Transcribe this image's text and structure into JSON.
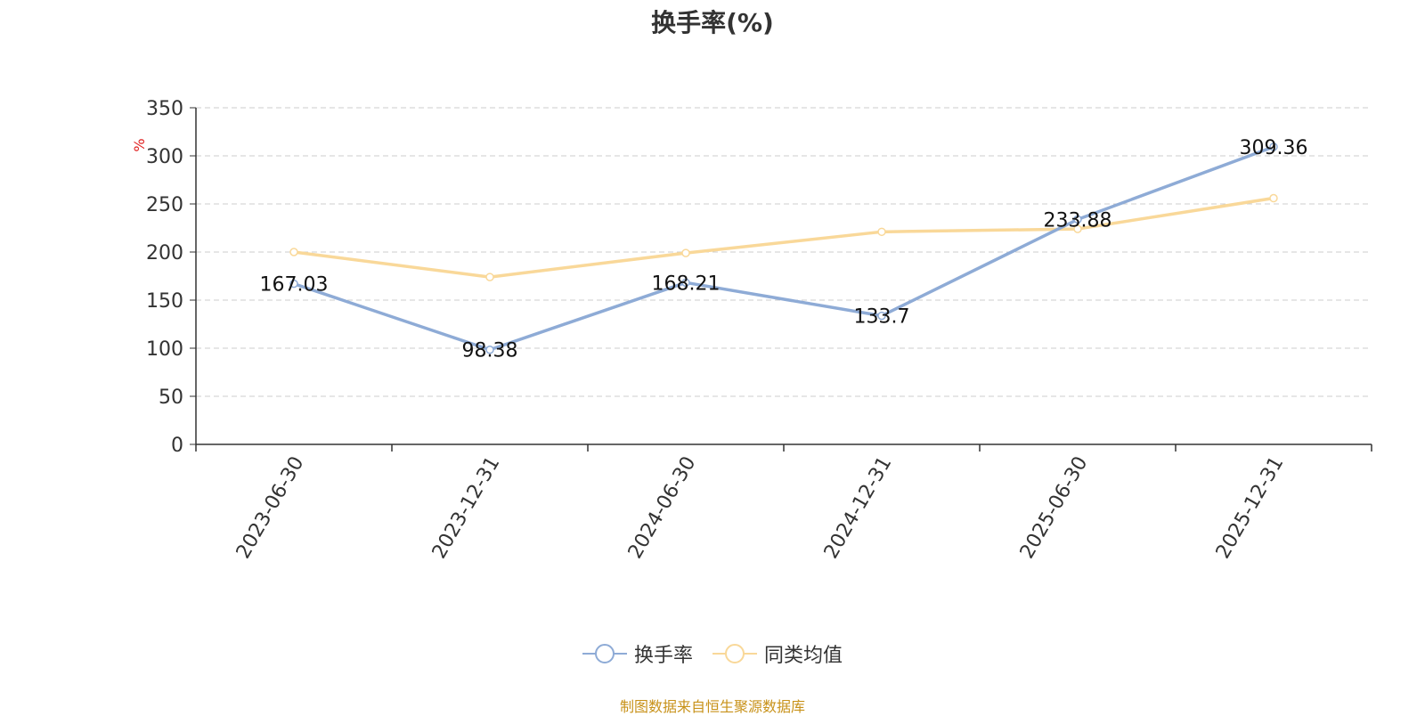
{
  "chart_data": {
    "type": "line",
    "title": "换手率(%)",
    "ylabel": "%",
    "xlabel": "",
    "categories": [
      "2023-06-30",
      "2023-12-31",
      "2024-06-30",
      "2024-12-31",
      "2025-06-30",
      "2025-12-31"
    ],
    "ylim": [
      0,
      350
    ],
    "yticks": [
      0,
      50,
      100,
      150,
      200,
      250,
      300,
      350
    ],
    "grid": true,
    "legend_position": "bottom",
    "series": [
      {
        "name": "换手率",
        "color": "#8eabd6",
        "values": [
          167.03,
          98.38,
          168.21,
          133.7,
          233.88,
          309.36
        ],
        "labels": [
          "167.03",
          "98.38",
          "168.21",
          "133.7",
          "233.88",
          "309.36"
        ],
        "show_labels": true
      },
      {
        "name": "同类均值",
        "color": "#f9d899",
        "values": [
          200,
          174,
          199,
          221,
          224,
          256
        ],
        "show_labels": false
      }
    ]
  },
  "footer": {
    "source": "制图数据来自恒生聚源数据库"
  }
}
